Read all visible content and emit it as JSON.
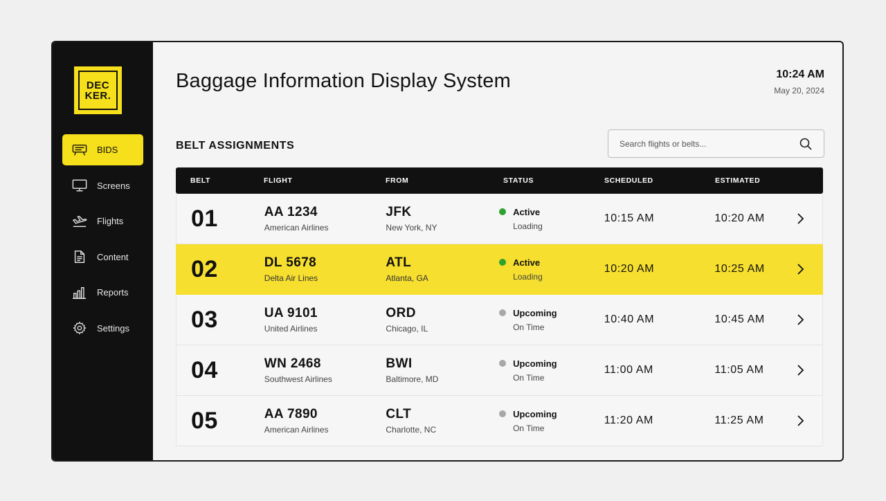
{
  "brand": {
    "logo_line1": "DEC",
    "logo_line2": "KER."
  },
  "sidebar": {
    "items": [
      {
        "label": "BIDS",
        "icon": "display-board-icon",
        "active": true
      },
      {
        "label": "Screens",
        "icon": "monitor-icon",
        "active": false
      },
      {
        "label": "Flights",
        "icon": "airplane-landing-icon",
        "active": false
      },
      {
        "label": "Content",
        "icon": "document-icon",
        "active": false
      },
      {
        "label": "Reports",
        "icon": "bar-chart-icon",
        "active": false
      },
      {
        "label": "Settings",
        "icon": "gear-icon",
        "active": false
      }
    ]
  },
  "header": {
    "title": "Baggage Information Display System",
    "time": "10:24 AM",
    "date": "May 20, 2024"
  },
  "section": {
    "title": "BELT ASSIGNMENTS"
  },
  "search": {
    "placeholder": "Search flights or belts...",
    "value": ""
  },
  "table": {
    "columns": [
      "BELT",
      "FLIGHT",
      "FROM",
      "STATUS",
      "SCHEDULED",
      "ESTIMATED"
    ],
    "rows": [
      {
        "belt": "01",
        "flight": "AA 1234",
        "airline": "American Airlines",
        "code": "JFK",
        "city": "New York, NY",
        "status": "Active",
        "status_sub": "Loading",
        "status_color": "#2ea12e",
        "scheduled": "10:15 AM",
        "estimated": "10:20 AM",
        "highlight": false
      },
      {
        "belt": "02",
        "flight": "DL 5678",
        "airline": "Delta Air Lines",
        "code": "ATL",
        "city": "Atlanta, GA",
        "status": "Active",
        "status_sub": "Loading",
        "status_color": "#2ea12e",
        "scheduled": "10:20 AM",
        "estimated": "10:25 AM",
        "highlight": true
      },
      {
        "belt": "03",
        "flight": "UA 9101",
        "airline": "United Airlines",
        "code": "ORD",
        "city": "Chicago, IL",
        "status": "Upcoming",
        "status_sub": "On Time",
        "status_color": "#a8a8a8",
        "scheduled": "10:40 AM",
        "estimated": "10:45 AM",
        "highlight": false
      },
      {
        "belt": "04",
        "flight": "WN 2468",
        "airline": "Southwest Airlines",
        "code": "BWI",
        "city": "Baltimore, MD",
        "status": "Upcoming",
        "status_sub": "On Time",
        "status_color": "#a8a8a8",
        "scheduled": "11:00 AM",
        "estimated": "11:05 AM",
        "highlight": false
      },
      {
        "belt": "05",
        "flight": "AA 7890",
        "airline": "American Airlines",
        "code": "CLT",
        "city": "Charlotte, NC",
        "status": "Upcoming",
        "status_sub": "On Time",
        "status_color": "#a8a8a8",
        "scheduled": "11:20 AM",
        "estimated": "11:25 AM",
        "highlight": false
      }
    ]
  },
  "colors": {
    "accent": "#f6df1b",
    "sidebar_bg": "#111111",
    "active_dot": "#2ea12e",
    "upcoming_dot": "#a8a8a8"
  }
}
